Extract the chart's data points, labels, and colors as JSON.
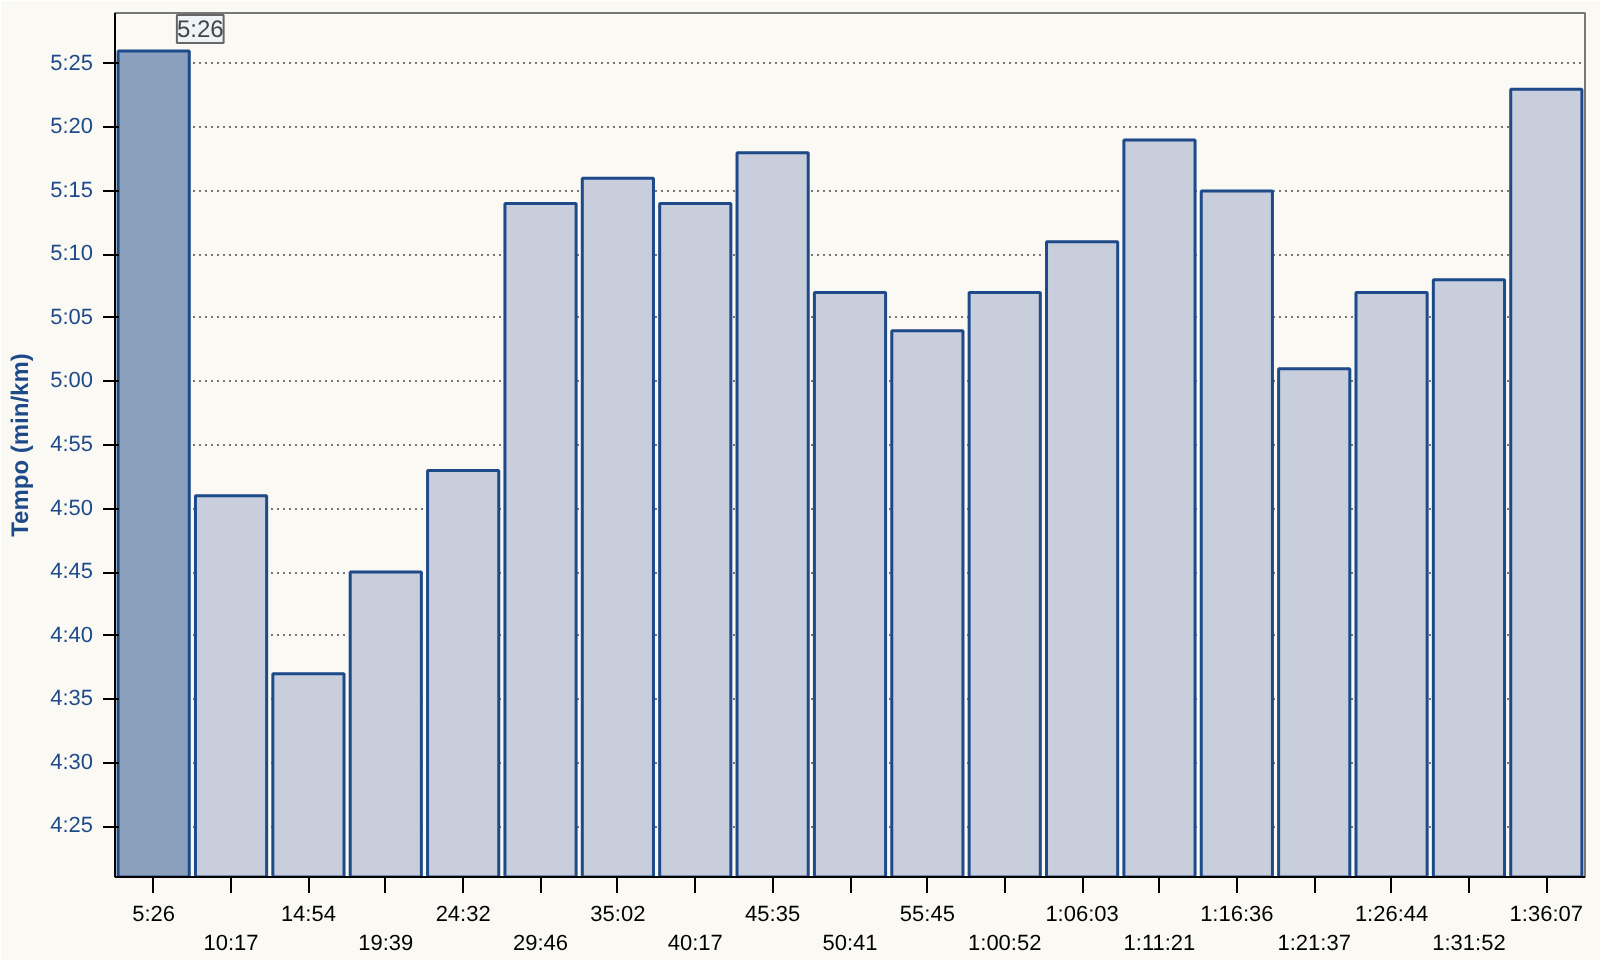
{
  "chart_data": {
    "type": "bar",
    "ylabel": "Tempo (min/km)",
    "categories": [
      "5:26",
      "10:17",
      "14:54",
      "19:39",
      "24:32",
      "29:46",
      "35:02",
      "40:17",
      "45:35",
      "50:41",
      "55:45",
      "1:00:52",
      "1:06:03",
      "1:11:21",
      "1:16:36",
      "1:21:37",
      "1:26:44",
      "1:31:52",
      "1:36:07"
    ],
    "values": [
      326,
      291,
      277,
      285,
      293,
      314,
      316,
      314,
      318,
      307,
      304,
      307,
      311,
      319,
      315,
      301,
      307,
      308,
      323
    ],
    "colors": [
      "#8aa0bd",
      "#c8cedb",
      "#c8cedb",
      "#c8cedb",
      "#c8cedb",
      "#c8cedb",
      "#c8cedb",
      "#c8cedb",
      "#c8cedb",
      "#c8cedb",
      "#c8cedb",
      "#c8cedb",
      "#c8cedb",
      "#c8cedb",
      "#c8cedb",
      "#c8cedb",
      "#c8cedb",
      "#c8cedb",
      "#c8cedb"
    ],
    "ylim": [
      261,
      329
    ],
    "yticks": [
      {
        "value": 265,
        "label": "4:25"
      },
      {
        "value": 270,
        "label": "4:30"
      },
      {
        "value": 275,
        "label": "4:35"
      },
      {
        "value": 280,
        "label": "4:40"
      },
      {
        "value": 285,
        "label": "4:45"
      },
      {
        "value": 290,
        "label": "4:50"
      },
      {
        "value": 295,
        "label": "4:55"
      },
      {
        "value": 300,
        "label": "5:00"
      },
      {
        "value": 305,
        "label": "5:05"
      },
      {
        "value": 310,
        "label": "5:10"
      },
      {
        "value": 315,
        "label": "5:15"
      },
      {
        "value": 320,
        "label": "5:20"
      },
      {
        "value": 325,
        "label": "5:25"
      }
    ],
    "annotations": [
      {
        "text": "5:26",
        "x": "5:26",
        "y": 326
      }
    ],
    "grid": "y"
  }
}
